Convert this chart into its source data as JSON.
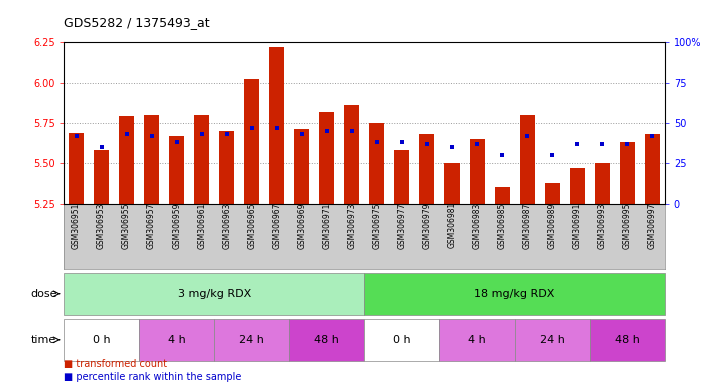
{
  "title": "GDS5282 / 1375493_at",
  "samples": [
    "GSM306951",
    "GSM306953",
    "GSM306955",
    "GSM306957",
    "GSM306959",
    "GSM306961",
    "GSM306963",
    "GSM306965",
    "GSM306967",
    "GSM306969",
    "GSM306971",
    "GSM306973",
    "GSM306975",
    "GSM306977",
    "GSM306979",
    "GSM306981",
    "GSM306983",
    "GSM306985",
    "GSM306987",
    "GSM306989",
    "GSM306991",
    "GSM306993",
    "GSM306995",
    "GSM306997"
  ],
  "bar_values": [
    5.69,
    5.58,
    5.79,
    5.8,
    5.67,
    5.8,
    5.7,
    6.02,
    6.22,
    5.71,
    5.82,
    5.86,
    5.75,
    5.58,
    5.68,
    5.5,
    5.65,
    5.35,
    5.8,
    5.38,
    5.47,
    5.5,
    5.63,
    5.68
  ],
  "percentile_values": [
    42,
    35,
    43,
    42,
    38,
    43,
    43,
    47,
    47,
    43,
    45,
    45,
    38,
    38,
    37,
    35,
    37,
    30,
    42,
    30,
    37,
    37,
    37,
    42
  ],
  "ymin": 5.25,
  "ymax": 6.25,
  "yticks": [
    5.25,
    5.5,
    5.75,
    6.0,
    6.25
  ],
  "right_yticks": [
    0,
    25,
    50,
    75,
    100
  ],
  "bar_color": "#cc2200",
  "percentile_color": "#0000cc",
  "grid_color": "#555555",
  "plot_bg": "#ffffff",
  "xtick_bg": "#cccccc",
  "fig_bg": "#ffffff",
  "dose_colors": [
    "#aaeebb",
    "#55dd55"
  ],
  "time_colors": [
    "#ffffff",
    "#dd77dd",
    "#dd77dd",
    "#cc44cc",
    "#ffffff",
    "#dd77dd",
    "#dd77dd",
    "#cc44cc"
  ],
  "time_labels": [
    "0 h",
    "4 h",
    "24 h",
    "48 h",
    "0 h",
    "4 h",
    "24 h",
    "48 h"
  ],
  "dose_labels": [
    "3 mg/kg RDX",
    "18 mg/kg RDX"
  ],
  "dose_starts": [
    0,
    12
  ],
  "dose_ends": [
    12,
    24
  ],
  "time_starts": [
    0,
    3,
    6,
    9,
    12,
    15,
    18,
    21
  ],
  "time_ends": [
    3,
    6,
    9,
    12,
    15,
    18,
    21,
    24
  ]
}
